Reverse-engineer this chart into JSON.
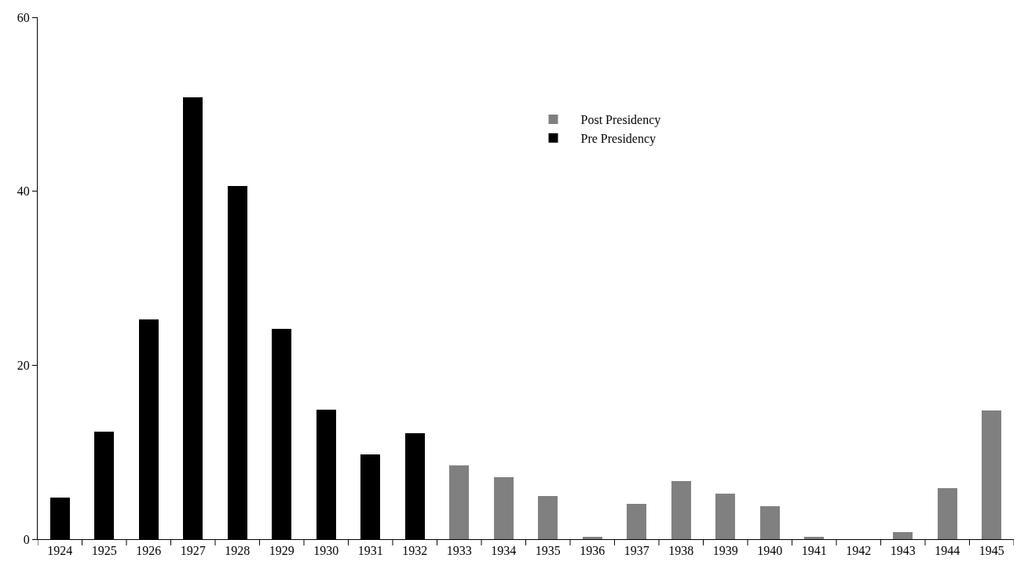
{
  "chart_data": {
    "type": "bar",
    "categories": [
      "1924",
      "1925",
      "1926",
      "1927",
      "1928",
      "1929",
      "1930",
      "1931",
      "1932",
      "1933",
      "1934",
      "1935",
      "1936",
      "1937",
      "1938",
      "1939",
      "1940",
      "1941",
      "1942",
      "1943",
      "1944",
      "1945"
    ],
    "series": [
      {
        "name": "Pre Presidency",
        "color": "#000000",
        "values": [
          4.8,
          12.4,
          25.3,
          50.8,
          40.6,
          24.2,
          14.9,
          9.7,
          12.2,
          null,
          null,
          null,
          null,
          null,
          null,
          null,
          null,
          null,
          null,
          null,
          null,
          null
        ]
      },
      {
        "name": "Post Presidency",
        "color": "#808080",
        "values": [
          null,
          null,
          null,
          null,
          null,
          null,
          null,
          null,
          null,
          8.5,
          7.1,
          5.0,
          0.3,
          4.1,
          6.7,
          5.2,
          3.8,
          0.3,
          0,
          0.8,
          5.9,
          14.8
        ]
      }
    ],
    "stacked": true,
    "ylim": [
      0,
      60
    ],
    "yticks": [
      0,
      20,
      40,
      60
    ],
    "grid": false,
    "legend": "top"
  }
}
